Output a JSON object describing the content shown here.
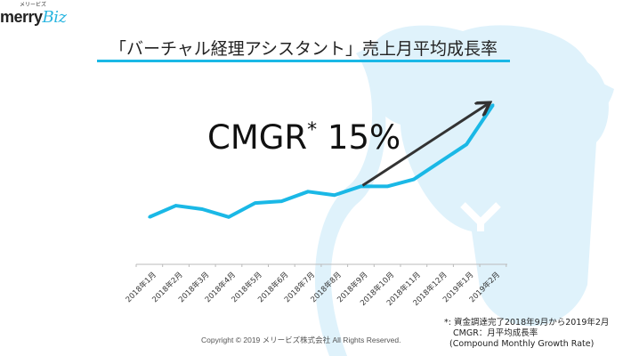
{
  "logo": {
    "kana": "メリービズ",
    "text": "merry",
    "accent": "Biz"
  },
  "title": "「バーチャル経理アシスタント」売上月平均成長率",
  "annotation": {
    "label": "CMGR",
    "asterisk": "*",
    "value": "15%"
  },
  "chart_data": {
    "type": "line",
    "categories": [
      "2018年1月",
      "2018年2月",
      "2018年3月",
      "2018年4月",
      "2018年5月",
      "2018年6月",
      "2018年7月",
      "2018年8月",
      "2018年9月",
      "2018年10月",
      "2018年11月",
      "2018年12月",
      "2019年1月",
      "2019年2月"
    ],
    "values": [
      54,
      67,
      63,
      54,
      70,
      72,
      83,
      79,
      89,
      89,
      97,
      117,
      137,
      182
    ],
    "ylim": [
      0,
      190
    ],
    "yaxis_shown": false,
    "grid": false,
    "line_color": "#1ab8e6",
    "arrow": {
      "from": "2018年9月",
      "to": "2019年2月",
      "color": "#333333"
    }
  },
  "footer": {
    "copyright": "Copyright © 2019 メリービズ株式会社 All Rights Reserved.",
    "notes": [
      "*: 資金調達完了2018年9月から2019年2月",
      "CMGR：月平均成長率",
      "(Compound Monthly Growth Rate)"
    ]
  }
}
